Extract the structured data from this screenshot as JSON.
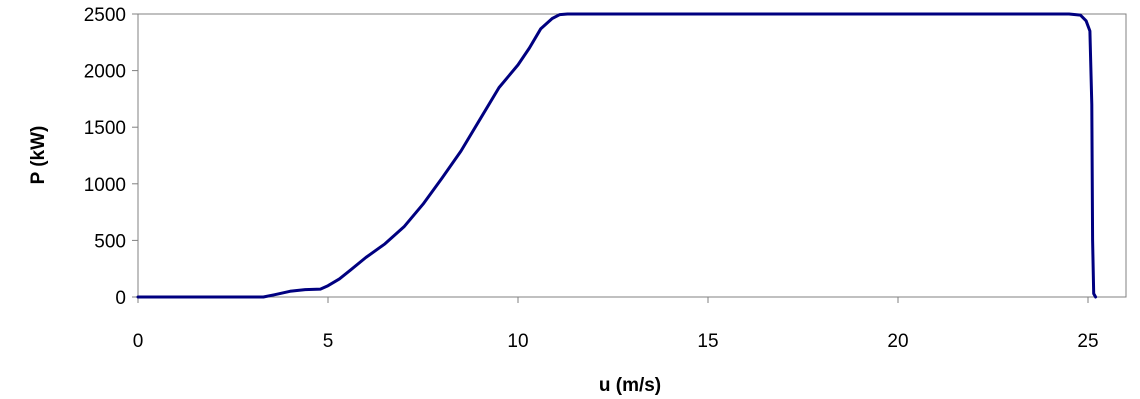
{
  "chart_data": {
    "type": "line",
    "title": "",
    "xlabel": "u (m/s)",
    "ylabel": "P (kW)",
    "xlim": [
      0,
      26
    ],
    "ylim": [
      0,
      2500
    ],
    "x_ticks": [
      0,
      5,
      10,
      15,
      20,
      25
    ],
    "y_ticks": [
      0,
      500,
      1000,
      1500,
      2000,
      2500
    ],
    "grid": false,
    "legend": "none",
    "colors": {
      "line": "#000080",
      "axis": "#808080"
    },
    "series": [
      {
        "x": [
          0,
          3.3,
          3.6,
          4.0,
          4.4,
          4.8,
          5.0,
          5.3,
          5.6,
          6.0,
          6.5,
          7.0,
          7.5,
          8.0,
          8.5,
          9.0,
          9.5,
          10.0,
          10.3,
          10.6,
          10.9,
          11.1,
          11.3,
          12.0,
          15.0,
          20.0,
          24.5,
          24.8,
          24.95,
          25.05,
          25.1,
          25.12,
          25.15,
          25.2
        ],
        "y": [
          0,
          0,
          20,
          50,
          65,
          70,
          100,
          160,
          240,
          350,
          470,
          620,
          820,
          1050,
          1290,
          1570,
          1850,
          2050,
          2200,
          2370,
          2460,
          2495,
          2500,
          2500,
          2500,
          2500,
          2500,
          2490,
          2440,
          2350,
          1700,
          500,
          30,
          0
        ]
      }
    ]
  }
}
